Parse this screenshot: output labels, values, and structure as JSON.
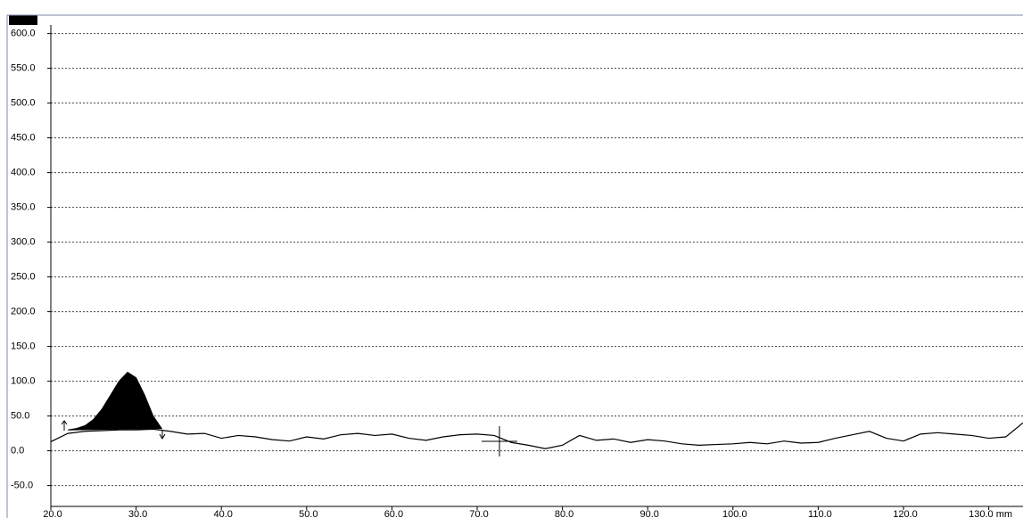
{
  "chart_data": {
    "type": "line",
    "xlim": [
      20,
      134
    ],
    "ylim": [
      -80,
      625
    ],
    "xticks": [
      {
        "value": 20,
        "label": "20.0"
      },
      {
        "value": 30,
        "label": "30.0"
      },
      {
        "value": 40,
        "label": "40.0"
      },
      {
        "value": 50,
        "label": "50.0"
      },
      {
        "value": 60,
        "label": "60.0"
      },
      {
        "value": 70,
        "label": "70.0"
      },
      {
        "value": 80,
        "label": "80.0"
      },
      {
        "value": 90,
        "label": "90.0"
      },
      {
        "value": 100,
        "label": "100.0"
      },
      {
        "value": 110,
        "label": "110.0"
      },
      {
        "value": 120,
        "label": "120.0"
      },
      {
        "value": 130,
        "label": "130.0 mm"
      }
    ],
    "yticks": [
      {
        "value": -50,
        "label": "-50.0"
      },
      {
        "value": 0,
        "label": "0.0"
      },
      {
        "value": 50,
        "label": "50.0"
      },
      {
        "value": 100,
        "label": "100.0"
      },
      {
        "value": 150,
        "label": "150.0"
      },
      {
        "value": 200,
        "label": "200.0"
      },
      {
        "value": 250,
        "label": "250.0"
      },
      {
        "value": 300,
        "label": "300.0"
      },
      {
        "value": 350,
        "label": "350.0"
      },
      {
        "value": 400,
        "label": "400.0"
      },
      {
        "value": 450,
        "label": "450.0"
      },
      {
        "value": 500,
        "label": "500.0"
      },
      {
        "value": 550,
        "label": "550.0"
      },
      {
        "value": 600,
        "label": "600.0"
      }
    ],
    "grid": true,
    "peak": {
      "color": "#000000",
      "x": [
        22,
        23,
        24,
        25,
        26,
        27,
        28,
        29,
        30,
        31,
        32,
        33
      ],
      "values": [
        30,
        32,
        36,
        45,
        60,
        80,
        100,
        113,
        105,
        80,
        50,
        32
      ]
    },
    "series": [
      {
        "color": "#000000",
        "x": [
          20,
          22,
          24,
          26,
          28,
          30,
          32,
          34,
          36,
          38,
          40,
          42,
          44,
          46,
          48,
          50,
          52,
          54,
          56,
          58,
          60,
          62,
          64,
          66,
          68,
          70,
          72,
          74,
          76,
          78,
          80,
          82,
          84,
          86,
          88,
          90,
          92,
          94,
          96,
          98,
          100,
          102,
          104,
          106,
          108,
          110,
          112,
          114,
          116,
          118,
          120,
          122,
          124,
          126,
          128,
          130,
          132,
          134
        ],
        "values": [
          13,
          25,
          28,
          29,
          30,
          30,
          31,
          28,
          24,
          25,
          18,
          22,
          20,
          16,
          14,
          20,
          17,
          23,
          25,
          22,
          24,
          18,
          15,
          20,
          23,
          24,
          22,
          12,
          8,
          3,
          8,
          22,
          15,
          17,
          12,
          16,
          14,
          10,
          8,
          9,
          10,
          12,
          10,
          14,
          11,
          12,
          18,
          23,
          28,
          18,
          14,
          24,
          26,
          24,
          22,
          18,
          20,
          40
        ]
      }
    ]
  }
}
